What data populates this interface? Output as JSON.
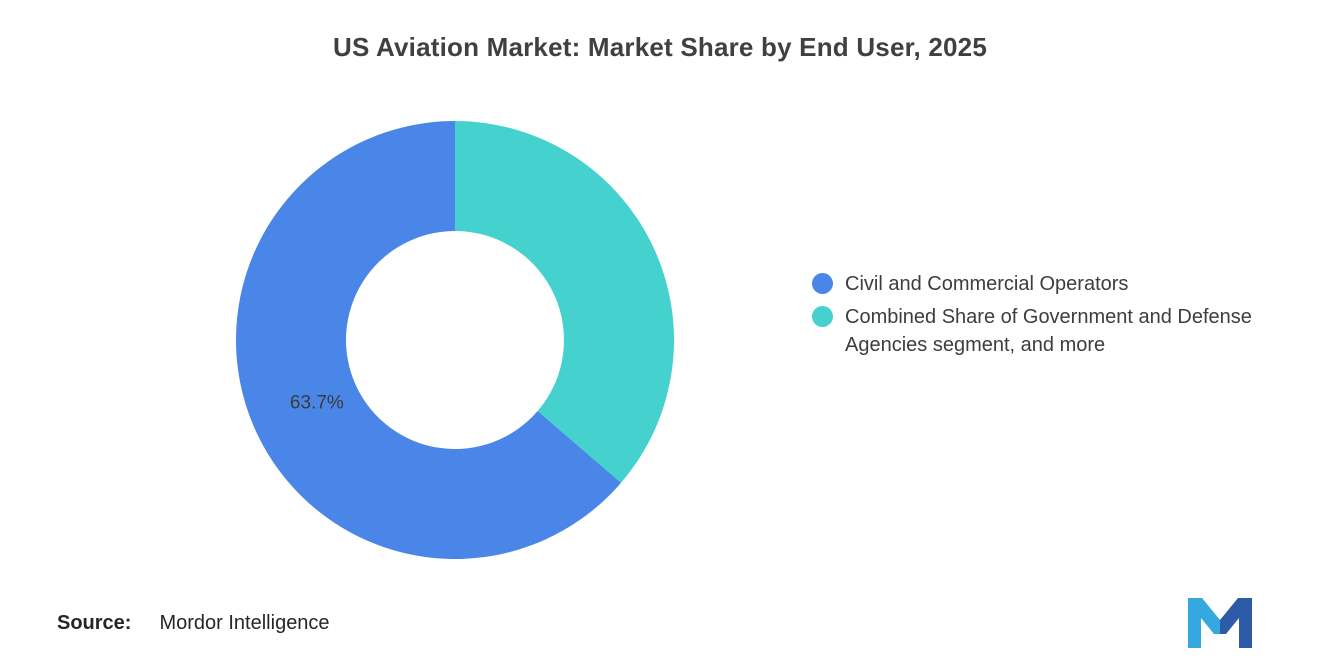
{
  "chart_data": {
    "type": "pie",
    "donut": true,
    "title": "US Aviation Market: Market Share by End User, 2025",
    "start_angle_deg": -90,
    "direction": "counterclockwise",
    "legend_position": "right",
    "slices": [
      {
        "label": "Civil and Commercial Operators",
        "value": 63.7,
        "color": "#4A86E8",
        "data_label": "63.7%"
      },
      {
        "label": "Combined Share of Government and Defense Agencies segment, and more",
        "value": 36.3,
        "color": "#45D2CE",
        "data_label": ""
      }
    ]
  },
  "source": {
    "prefix": "Source:",
    "name": "Mordor Intelligence"
  },
  "logo": {
    "name": "mordor-intelligence-logo",
    "color_light": "#35A8E0",
    "color_dark": "#2D5BA7"
  },
  "colors": {
    "title_text": "#404040",
    "legend_text": "#3d3d3d",
    "slice_label_text": "#3b3b3b"
  }
}
